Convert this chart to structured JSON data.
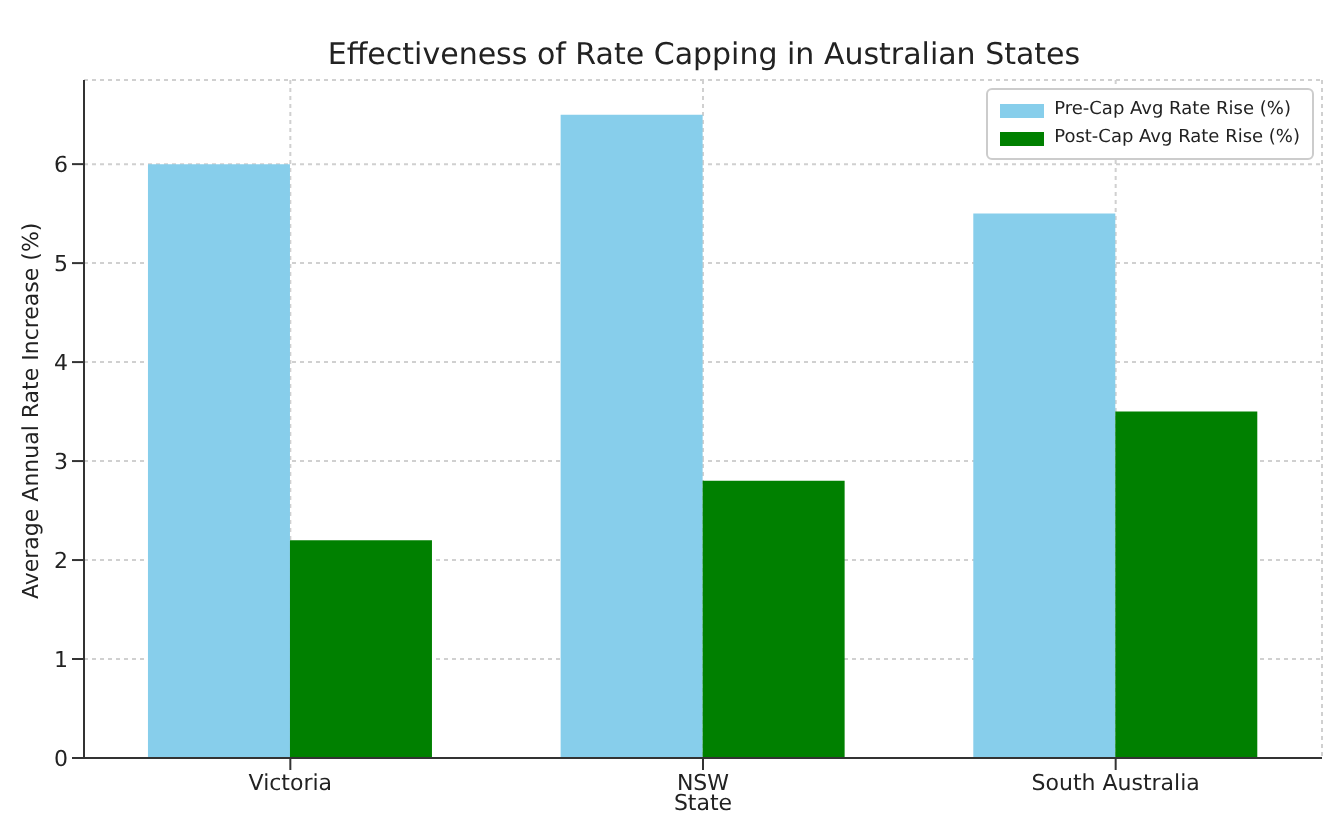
{
  "chart_data": {
    "type": "bar",
    "title": "Effectiveness of Rate Capping in Australian States",
    "xlabel": "State",
    "ylabel": "Average Annual Rate Increase (%)",
    "categories": [
      "Victoria",
      "NSW",
      "South Australia"
    ],
    "series": [
      {
        "name": "Pre-Cap Avg Rate Rise (%)",
        "color": "#87ceeb",
        "values": [
          6.0,
          6.5,
          5.5
        ]
      },
      {
        "name": "Post-Cap Avg Rate Rise (%)",
        "color": "#008000",
        "values": [
          2.2,
          2.8,
          3.5
        ]
      }
    ],
    "ylim": [
      0,
      6.85
    ],
    "yticks": [
      0,
      1,
      2,
      3,
      4,
      5,
      6
    ],
    "grid": true,
    "legend": "top right"
  }
}
